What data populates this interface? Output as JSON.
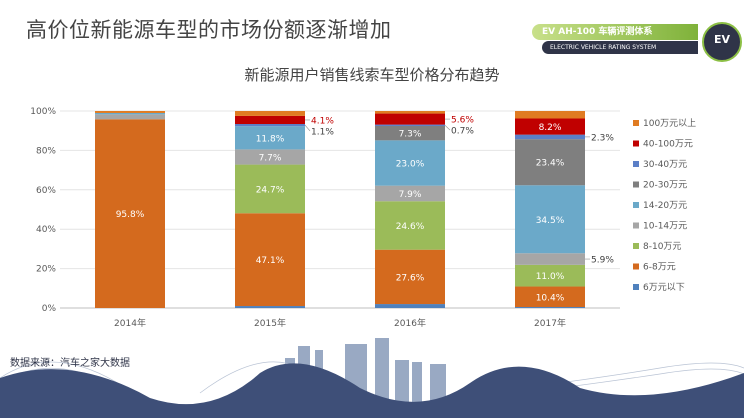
{
  "header": {
    "title": "高价位新能源车型的市场份额逐渐增加",
    "badge_cn": "EV AH-100 车辆评测体系",
    "badge_en": "ELECTRIC VEHICLE RATING SYSTEM",
    "badge_logo": "EV AH 100"
  },
  "footer": {
    "source": "数据来源：汽车之家大数据"
  },
  "chart_data": {
    "type": "bar",
    "stacked": true,
    "title": "新能源用户销售线索车型价格分布趋势",
    "categories": [
      "2014年",
      "2015年",
      "2016年",
      "2017年"
    ],
    "ylim": [
      0,
      100
    ],
    "yticks": [
      "0%",
      "20%",
      "40%",
      "60%",
      "80%",
      "100%"
    ],
    "legend_position": "right",
    "series": [
      {
        "name": "6万元以下",
        "color": "#4F81BD",
        "values": [
          0.0,
          1.0,
          2.0,
          0.5
        ],
        "labels": [
          null,
          null,
          null,
          null
        ]
      },
      {
        "name": "6-8万元",
        "color": "#D46A1E",
        "values": [
          95.8,
          47.1,
          27.6,
          10.4
        ],
        "labels": [
          "95.8%",
          "47.1%",
          "27.6%",
          "10.4%"
        ]
      },
      {
        "name": "8-10万元",
        "color": "#9BBB59",
        "values": [
          0.0,
          24.7,
          24.6,
          11.0
        ],
        "labels": [
          null,
          "24.7%",
          "24.6%",
          "11.0%"
        ]
      },
      {
        "name": "10-14万元",
        "color": "#A6A6A6",
        "values": [
          2.5,
          7.7,
          7.9,
          5.9
        ],
        "labels": [
          null,
          "7.7%",
          "7.9%",
          "5.9%"
        ]
      },
      {
        "name": "14-20万元",
        "color": "#6BA9C9",
        "values": [
          0.7,
          11.8,
          23.0,
          34.5
        ],
        "labels": [
          null,
          "11.8%",
          "23.0%",
          "34.5%"
        ]
      },
      {
        "name": "20-30万元",
        "color": "#7F7F7F",
        "values": [
          0.0,
          0.0,
          7.3,
          23.4
        ],
        "labels": [
          null,
          null,
          "7.3%",
          "23.4%"
        ]
      },
      {
        "name": "30-40万元",
        "color": "#5B7FC7",
        "values": [
          0.0,
          1.1,
          0.7,
          2.3
        ],
        "labels": [
          null,
          "1.1%",
          "0.7%",
          "2.3%"
        ]
      },
      {
        "name": "40-100万元",
        "color": "#C00000",
        "values": [
          0.0,
          4.1,
          5.6,
          8.2
        ],
        "labels": [
          null,
          "4.1%",
          "5.6%",
          "8.2%"
        ]
      },
      {
        "name": "100万元以上",
        "color": "#E07B22",
        "values": [
          1.0,
          2.5,
          1.3,
          3.8
        ],
        "labels": [
          null,
          null,
          null,
          null
        ]
      }
    ]
  }
}
